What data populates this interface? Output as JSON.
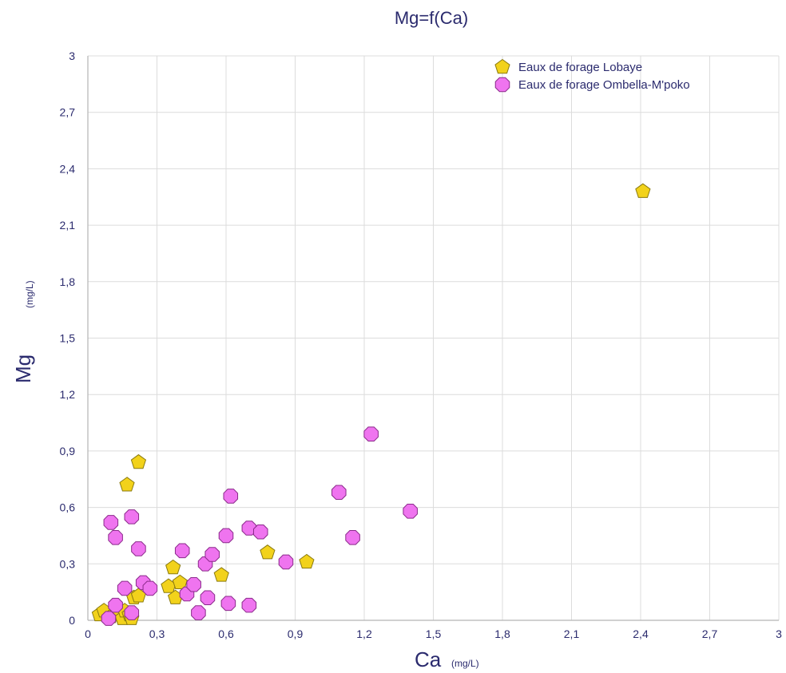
{
  "chart_data": {
    "type": "scatter",
    "title": "Mg=f(Ca)",
    "xlabel": "Ca",
    "xlabel_unit": "(mg/L)",
    "ylabel": "Mg",
    "ylabel_unit": "(mg/L)",
    "xlim": [
      0,
      3
    ],
    "ylim": [
      0,
      3
    ],
    "x_ticks": [
      "0",
      "0,3",
      "0,6",
      "0,9",
      "1,2",
      "1,5",
      "1,8",
      "2,1",
      "2,4",
      "2,7",
      "3"
    ],
    "y_ticks": [
      "0",
      "0,3",
      "0,6",
      "0,9",
      "1,2",
      "1,5",
      "1,8",
      "2,1",
      "2,4",
      "2,7",
      "3"
    ],
    "grid": true,
    "legend_position": "top-right",
    "series": [
      {
        "name": "Eaux de forage Lobaye",
        "marker": "pentagon",
        "color": "#f2d21b",
        "stroke": "#8a7a10",
        "points": [
          [
            0.05,
            0.03
          ],
          [
            0.07,
            0.05
          ],
          [
            0.1,
            0.02
          ],
          [
            0.13,
            0.04
          ],
          [
            0.15,
            0.01
          ],
          [
            0.16,
            0.05
          ],
          [
            0.18,
            0.03
          ],
          [
            0.19,
            0.01
          ],
          [
            0.2,
            0.12
          ],
          [
            0.22,
            0.13
          ],
          [
            0.17,
            0.72
          ],
          [
            0.22,
            0.84
          ],
          [
            0.35,
            0.18
          ],
          [
            0.37,
            0.28
          ],
          [
            0.38,
            0.12
          ],
          [
            0.4,
            0.2
          ],
          [
            0.58,
            0.24
          ],
          [
            0.78,
            0.36
          ],
          [
            0.95,
            0.31
          ],
          [
            2.41,
            2.28
          ]
        ]
      },
      {
        "name": "Eaux de forage Ombella-M'poko",
        "marker": "octagon",
        "color": "#ef74ef",
        "stroke": "#8a2a8a",
        "points": [
          [
            0.09,
            0.01
          ],
          [
            0.1,
            0.52
          ],
          [
            0.12,
            0.44
          ],
          [
            0.12,
            0.08
          ],
          [
            0.16,
            0.17
          ],
          [
            0.19,
            0.55
          ],
          [
            0.19,
            0.04
          ],
          [
            0.22,
            0.38
          ],
          [
            0.24,
            0.2
          ],
          [
            0.27,
            0.17
          ],
          [
            0.41,
            0.37
          ],
          [
            0.43,
            0.14
          ],
          [
            0.46,
            0.19
          ],
          [
            0.48,
            0.04
          ],
          [
            0.51,
            0.3
          ],
          [
            0.52,
            0.12
          ],
          [
            0.54,
            0.35
          ],
          [
            0.6,
            0.45
          ],
          [
            0.61,
            0.09
          ],
          [
            0.62,
            0.66
          ],
          [
            0.7,
            0.49
          ],
          [
            0.7,
            0.08
          ],
          [
            0.75,
            0.47
          ],
          [
            0.86,
            0.31
          ],
          [
            1.09,
            0.68
          ],
          [
            1.15,
            0.44
          ],
          [
            1.23,
            0.99
          ],
          [
            1.4,
            0.58
          ]
        ]
      }
    ]
  }
}
